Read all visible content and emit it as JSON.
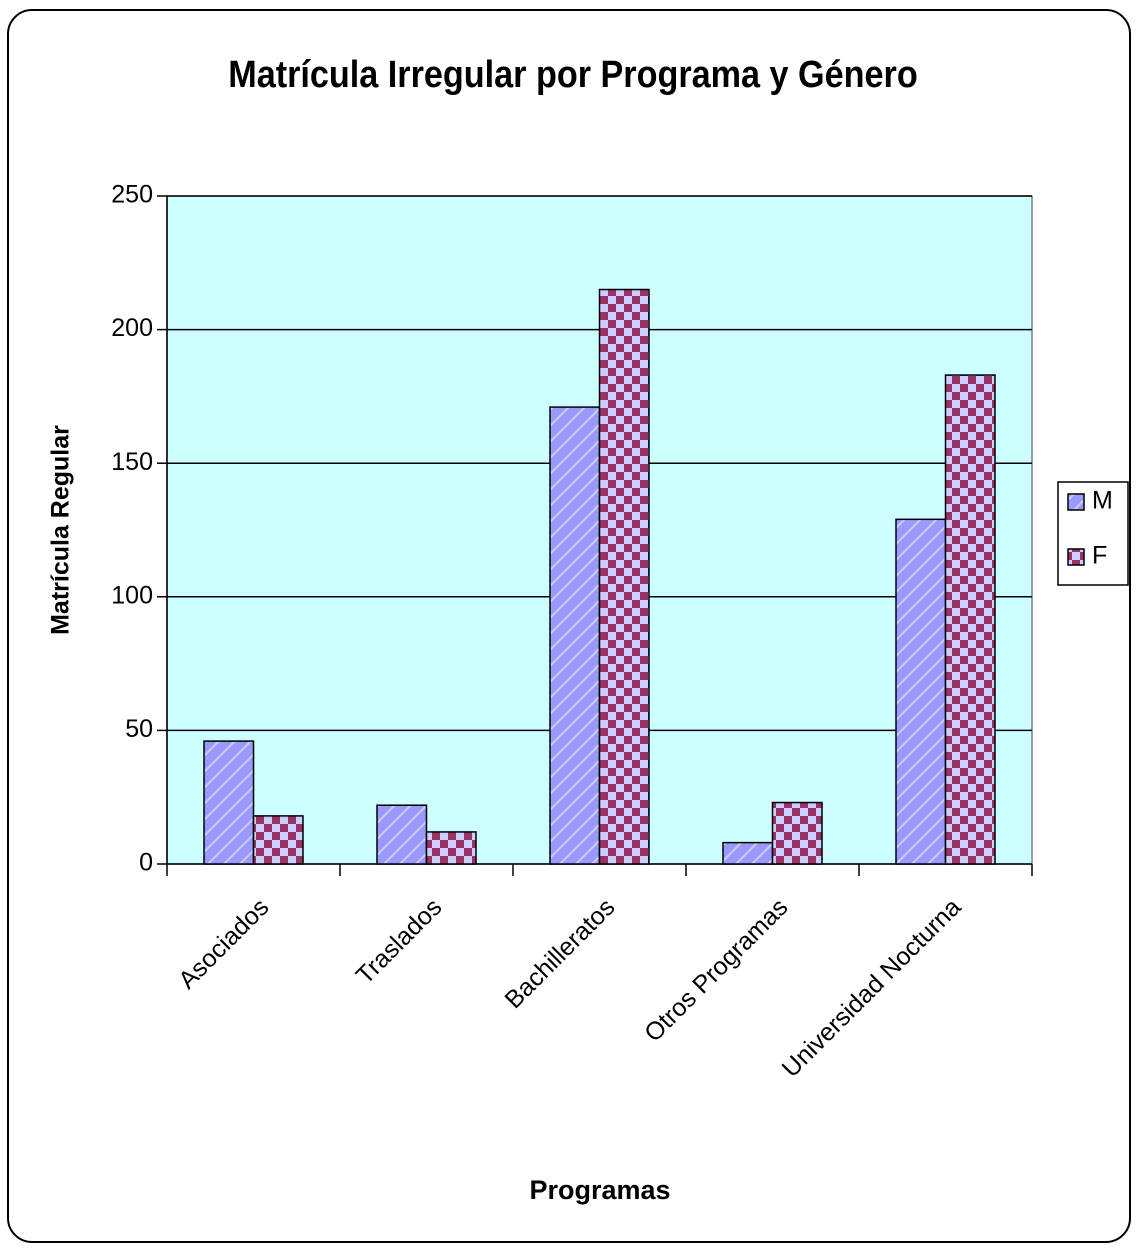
{
  "chart_data": {
    "type": "bar",
    "title": "Matrícula Irregular por Programa y Género",
    "x_label": "Programas",
    "y_label": "Matrícula Regular",
    "categories": [
      "Asociados",
      "Traslados",
      "Bachilleratos",
      "Otros Programas",
      "Universidad Nocturna"
    ],
    "series": [
      {
        "name": "M",
        "color": "#9999ff",
        "values": [
          46,
          22,
          171,
          8,
          129
        ]
      },
      {
        "name": "F",
        "color": "#993366",
        "values": [
          18,
          12,
          215,
          23,
          183
        ]
      }
    ],
    "ylim": [
      0,
      250
    ],
    "yticks": [
      0,
      50,
      100,
      150,
      200,
      250
    ],
    "grid": true,
    "legend": "right"
  }
}
